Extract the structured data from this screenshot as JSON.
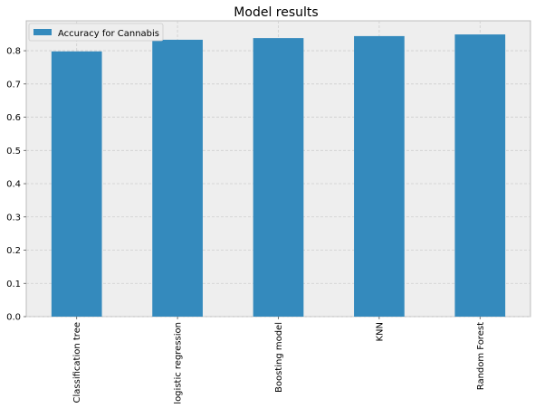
{
  "chart_data": {
    "type": "bar",
    "title": "Model results",
    "categories": [
      "Classification tree",
      "logistic regression",
      "Boosting model",
      "KNN",
      "Random Forest"
    ],
    "series": [
      {
        "name": "Accuracy for Cannabis",
        "values": [
          0.798,
          0.833,
          0.838,
          0.844,
          0.849
        ]
      }
    ],
    "xlabel": "",
    "ylabel": "",
    "ylim": [
      0,
      0.89
    ],
    "yticks": [
      "0.0",
      "0.1",
      "0.2",
      "0.3",
      "0.4",
      "0.5",
      "0.6",
      "0.7",
      "0.8"
    ],
    "grid": true,
    "legend_position": "top-left",
    "colors": {
      "bar": "#348abd",
      "plot_background": "#eeeeee",
      "grid": "#cfcfcf",
      "axis_edge": "#bcbcbc"
    }
  }
}
